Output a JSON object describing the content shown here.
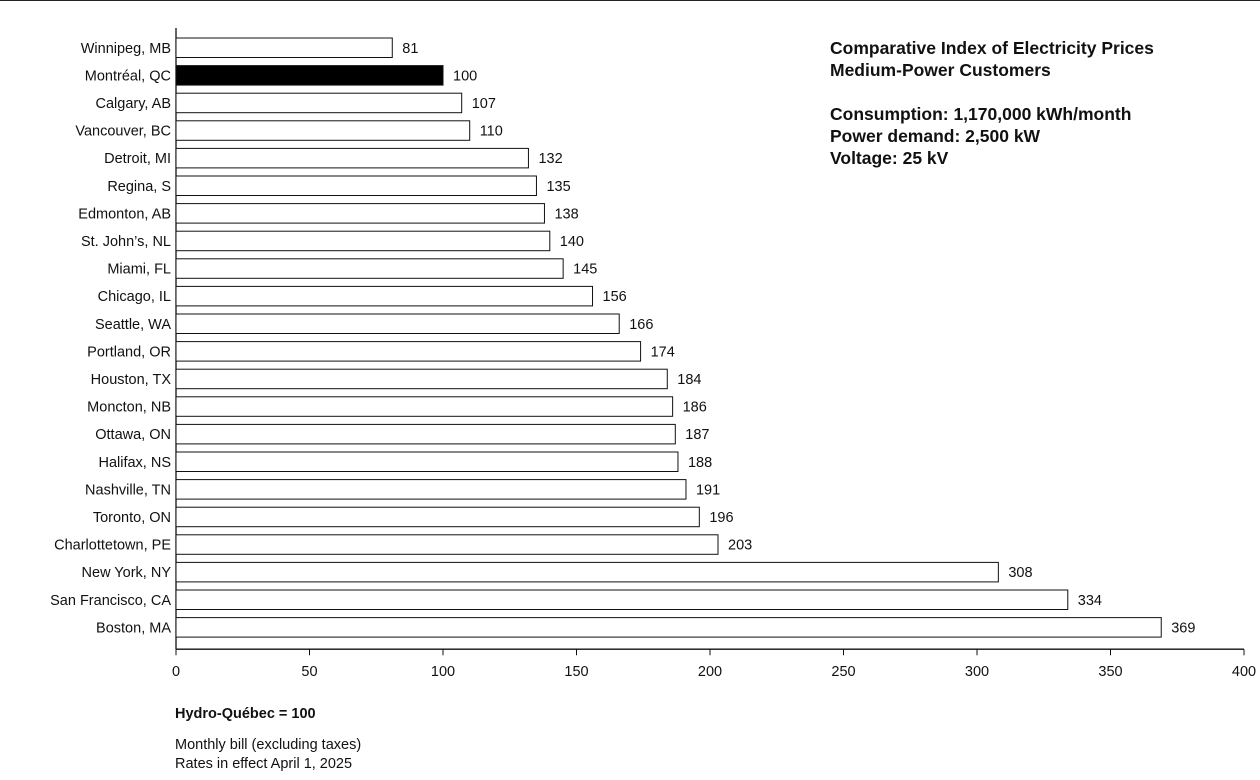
{
  "chart_data": {
    "type": "bar",
    "orientation": "horizontal",
    "title": "Comparative Index of Electricity Prices",
    "subtitle": "Medium-Power Customers",
    "parameters": [
      "Consumption: 1,170,000 kWh/month",
      "Power demand: 2,500 kW",
      "Voltage: 25 kV"
    ],
    "categories": [
      "Winnipeg, MB",
      "Montréal, QC",
      "Calgary, AB",
      "Vancouver, BC",
      "Detroit, MI",
      "Regina, S",
      "Edmonton, AB",
      "St. John’s, NL",
      "Miami, FL",
      "Chicago, IL",
      "Seattle, WA",
      "Portland, OR",
      "Houston, TX",
      "Moncton, NB",
      "Ottawa, ON",
      "Halifax, NS",
      "Nashville, TN",
      "Toronto, ON",
      "Charlottetown, PE",
      "New York, NY",
      "San Francisco, CA",
      "Boston, MA"
    ],
    "values": [
      81,
      100,
      107,
      110,
      132,
      135,
      138,
      140,
      145,
      156,
      166,
      174,
      184,
      186,
      187,
      188,
      191,
      196,
      203,
      308,
      334,
      369
    ],
    "highlight": "Montréal, QC",
    "xlim": [
      0,
      400
    ],
    "xticks": [
      "0",
      "50",
      "100",
      "150",
      "200",
      "250",
      "300",
      "350",
      "400"
    ],
    "grid": false,
    "colors": {
      "bar_fill": "#ffffff",
      "bar_stroke": "#111111",
      "highlight_fill": "#000000"
    }
  },
  "footer": {
    "base_label": "Hydro-Québec = 100",
    "notes": [
      "Monthly bill (excluding taxes)",
      "Rates in effect April 1, 2025"
    ]
  }
}
